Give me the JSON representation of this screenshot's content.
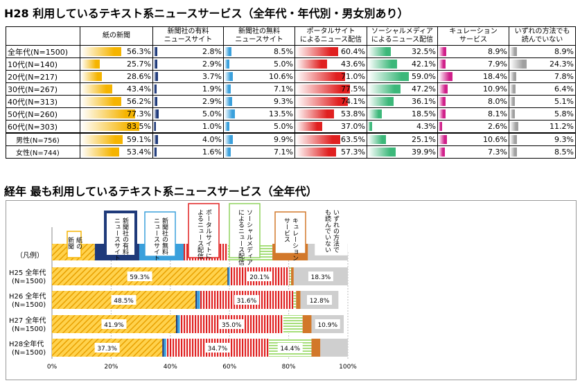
{
  "title1": "H28 利用しているテキスト系ニュースサービス（全年代・年代別・男女別あり）",
  "title2": "経年 最も利用しているテキスト系ニュースサービス（全年代）",
  "chart_data": [
    {
      "type": "table",
      "title": "H28 利用しているテキスト系ニュースサービス（全年代・年代別・男女別あり）",
      "columns": [
        "紙の新聞",
        "新聞社の有料ニュースサイト",
        "新聞社の無料ニュースサイト",
        "ポータルサイトによるニュース配信",
        "ソーシャルメディアによるニュース配信",
        "キュレーションサービス",
        "いずれの方法でも読んでいない"
      ],
      "column_labels": [
        [
          "紙の新聞"
        ],
        [
          "新聞社の有料",
          "ニュースサイト"
        ],
        [
          "新聞社の無料",
          "ニュースサイト"
        ],
        [
          "ポータルサイト",
          "によるニュース配信"
        ],
        [
          "ソーシャルメディア",
          "によるニュース配信"
        ],
        [
          "キュレーション",
          "サービス"
        ],
        [
          "いずれの方法でも",
          "読んでいない"
        ]
      ],
      "colors": [
        "#f5b400",
        "#1f3a7a",
        "#3aa0dc",
        "#e02020",
        "#3cb87a",
        "#d0208a",
        "#a0a0a0"
      ],
      "rows": [
        {
          "label": "全年代(N=1500)",
          "values": [
            56.3,
            2.8,
            8.5,
            60.4,
            32.5,
            8.9,
            8.9
          ]
        },
        {
          "label": "10代(N=140)",
          "values": [
            25.7,
            2.9,
            5.0,
            43.6,
            42.1,
            7.9,
            24.3
          ]
        },
        {
          "label": "20代(N=217)",
          "values": [
            28.6,
            3.7,
            10.6,
            71.0,
            59.0,
            18.4,
            7.8
          ]
        },
        {
          "label": "30代(N=267)",
          "values": [
            43.4,
            1.9,
            7.1,
            77.5,
            47.2,
            10.9,
            6.4
          ]
        },
        {
          "label": "40代(N=313)",
          "values": [
            56.2,
            2.9,
            9.3,
            74.1,
            36.1,
            8.0,
            5.1
          ]
        },
        {
          "label": "50代(N=260)",
          "values": [
            77.3,
            5.0,
            13.5,
            53.8,
            18.5,
            8.1,
            5.8
          ]
        },
        {
          "label": "60代(N=303)",
          "values": [
            83.5,
            1.0,
            5.0,
            37.0,
            4.3,
            2.6,
            11.2
          ]
        },
        {
          "label": "男性(N=756)",
          "values": [
            59.1,
            4.0,
            9.9,
            63.5,
            25.1,
            10.6,
            9.3
          ]
        },
        {
          "label": "女性(N=744)",
          "values": [
            53.4,
            1.6,
            7.1,
            57.3,
            39.9,
            7.3,
            8.5
          ]
        }
      ]
    },
    {
      "type": "bar",
      "stacked": true,
      "orientation": "horizontal",
      "title": "経年 最も利用しているテキスト系ニュースサービス（全年代）",
      "legend_label": "（凡例）",
      "legend_items": [
        {
          "name": "紙の新聞",
          "lines": [
            "紙の",
            "新聞"
          ]
        },
        {
          "name": "新聞社の有料ニュースサイト",
          "lines": [
            "新聞社の有料",
            "ニュースサイト"
          ]
        },
        {
          "name": "新聞社の無料ニュースサイト",
          "lines": [
            "新聞社の無料",
            "ニュースサイト"
          ]
        },
        {
          "name": "ポータルサイトによるニュース配信",
          "lines": [
            "ポータルサイトに",
            "よるニュース配信"
          ]
        },
        {
          "name": "ソーシャルメディアによるニュース配信",
          "lines": [
            "ソーシャルメディア",
            "によるニュース配信"
          ]
        },
        {
          "name": "キュレーションサービス",
          "lines": [
            "キュレーション",
            "サービス"
          ]
        },
        {
          "name": "いずれの方法でも読んでいない",
          "lines": [
            "いずれの方法で",
            "も読んでいない"
          ]
        }
      ],
      "categories": [
        [
          "H25 全年代",
          "(N=1500)"
        ],
        [
          "H26 全年代",
          "(N=1500)"
        ],
        [
          "H27 全年代",
          "(N=1500)"
        ],
        [
          "H28全年代",
          "(N=1500)"
        ]
      ],
      "series": [
        {
          "name": "紙の新聞",
          "color": "#f5b400",
          "values": [
            59.3,
            48.5,
            41.9,
            37.3
          ],
          "labels": [
            "59.3%",
            "48.5%",
            "41.9%",
            "37.3%"
          ]
        },
        {
          "name": "新聞社の有料ニュースサイト",
          "color": "#1f3a7a",
          "values": [
            0.3,
            0.5,
            0.5,
            0.5
          ],
          "labels": [
            "",
            "",
            "",
            ""
          ]
        },
        {
          "name": "新聞社の無料ニュースサイト",
          "color": "#3aa0dc",
          "values": [
            0.5,
            1.0,
            0.8,
            0.8
          ],
          "labels": [
            "",
            "",
            "",
            ""
          ]
        },
        {
          "name": "ポータルサイトによるニュース配信",
          "color": "#e02020",
          "values": [
            20.1,
            31.6,
            35.0,
            34.7
          ],
          "labels": [
            "20.1%",
            "31.6%",
            "35.0%",
            "34.7%"
          ]
        },
        {
          "name": "ソーシャルメディアによるニュース配信",
          "color": "#8fd35f",
          "values": [
            0.6,
            0.9,
            6.5,
            14.4
          ],
          "labels": [
            "",
            "",
            "",
            "14.4%"
          ]
        },
        {
          "name": "キュレーションサービス",
          "color": "#d2782a",
          "values": [
            0.9,
            1.5,
            3.0,
            3.0
          ],
          "labels": [
            "",
            "",
            "",
            ""
          ]
        },
        {
          "name": "いずれの方法でも読んでいない",
          "color": "#cfcfcf",
          "values": [
            18.3,
            12.8,
            10.9,
            9.3
          ],
          "labels": [
            "18.3%",
            "12.8%",
            "10.9%",
            ""
          ]
        }
      ],
      "xticks": [
        "0%",
        "20%",
        "40%",
        "60%",
        "80%",
        "100%"
      ],
      "xlim": [
        0,
        100
      ]
    }
  ]
}
